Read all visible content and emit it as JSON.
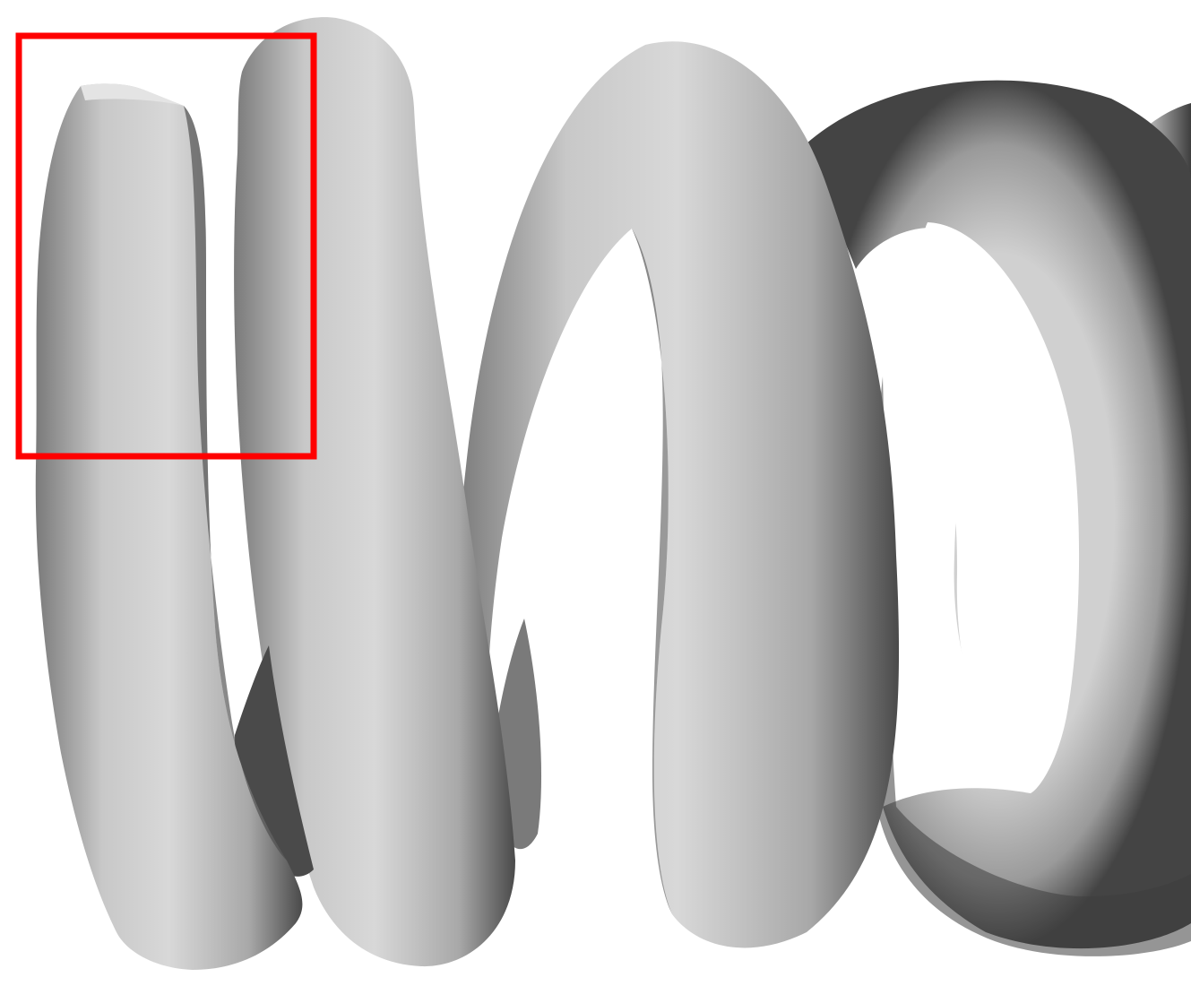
{
  "render": {
    "subject": "coil-spring-mesh",
    "background_color": "#ffffff",
    "shade_dark": "#3e3e3e",
    "shade_mid": "#8a8a8a",
    "shade_light": "#d6d6d6",
    "highlight_color": "#ff0000"
  }
}
